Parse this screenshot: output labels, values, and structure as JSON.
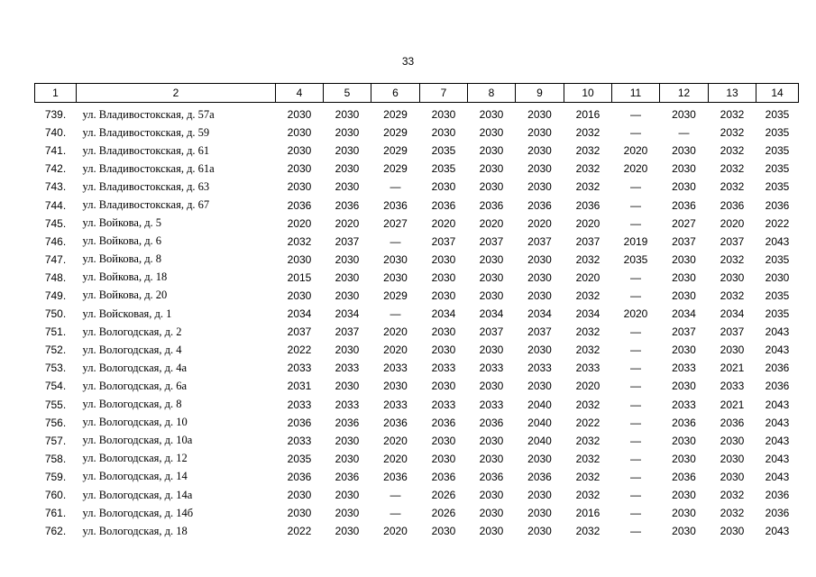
{
  "page_number": "33",
  "table": {
    "header": [
      "1",
      "2",
      "4",
      "5",
      "6",
      "7",
      "8",
      "9",
      "10",
      "11",
      "12",
      "13",
      "14"
    ],
    "rows": [
      [
        "739.",
        "ул. Владивостокская, д. 57а",
        "2030",
        "2030",
        "2029",
        "2030",
        "2030",
        "2030",
        "2016",
        "—",
        "2030",
        "2032",
        "2035"
      ],
      [
        "740.",
        "ул. Владивостокская, д. 59",
        "2030",
        "2030",
        "2029",
        "2030",
        "2030",
        "2030",
        "2032",
        "—",
        "—",
        "2032",
        "2035"
      ],
      [
        "741.",
        "ул. Владивостокская, д. 61",
        "2030",
        "2030",
        "2029",
        "2035",
        "2030",
        "2030",
        "2032",
        "2020",
        "2030",
        "2032",
        "2035"
      ],
      [
        "742.",
        "ул. Владивостокская, д. 61а",
        "2030",
        "2030",
        "2029",
        "2035",
        "2030",
        "2030",
        "2032",
        "2020",
        "2030",
        "2032",
        "2035"
      ],
      [
        "743.",
        "ул. Владивостокская, д. 63",
        "2030",
        "2030",
        "—",
        "2030",
        "2030",
        "2030",
        "2032",
        "—",
        "2030",
        "2032",
        "2035"
      ],
      [
        "744.",
        "ул. Владивостокская, д. 67",
        "2036",
        "2036",
        "2036",
        "2036",
        "2036",
        "2036",
        "2036",
        "—",
        "2036",
        "2036",
        "2036"
      ],
      [
        "745.",
        "ул. Войкова, д. 5",
        "2020",
        "2020",
        "2027",
        "2020",
        "2020",
        "2020",
        "2020",
        "—",
        "2027",
        "2020",
        "2022"
      ],
      [
        "746.",
        "ул. Войкова, д. 6",
        "2032",
        "2037",
        "—",
        "2037",
        "2037",
        "2037",
        "2037",
        "2019",
        "2037",
        "2037",
        "2043"
      ],
      [
        "747.",
        "ул. Войкова, д. 8",
        "2030",
        "2030",
        "2030",
        "2030",
        "2030",
        "2030",
        "2032",
        "2035",
        "2030",
        "2032",
        "2035"
      ],
      [
        "748.",
        "ул. Войкова, д. 18",
        "2015",
        "2030",
        "2030",
        "2030",
        "2030",
        "2030",
        "2020",
        "—",
        "2030",
        "2030",
        "2030"
      ],
      [
        "749.",
        "ул. Войкова, д. 20",
        "2030",
        "2030",
        "2029",
        "2030",
        "2030",
        "2030",
        "2032",
        "—",
        "2030",
        "2032",
        "2035"
      ],
      [
        "750.",
        "ул. Войсковая, д. 1",
        "2034",
        "2034",
        "—",
        "2034",
        "2034",
        "2034",
        "2034",
        "2020",
        "2034",
        "2034",
        "2035"
      ],
      [
        "751.",
        "ул. Вологодская, д. 2",
        "2037",
        "2037",
        "2020",
        "2030",
        "2037",
        "2037",
        "2032",
        "—",
        "2037",
        "2037",
        "2043"
      ],
      [
        "752.",
        "ул. Вологодская, д. 4",
        "2022",
        "2030",
        "2020",
        "2030",
        "2030",
        "2030",
        "2032",
        "—",
        "2030",
        "2030",
        "2043"
      ],
      [
        "753.",
        "ул. Вологодская, д. 4а",
        "2033",
        "2033",
        "2033",
        "2033",
        "2033",
        "2033",
        "2033",
        "—",
        "2033",
        "2021",
        "2036"
      ],
      [
        "754.",
        "ул. Вологодская, д. 6а",
        "2031",
        "2030",
        "2030",
        "2030",
        "2030",
        "2030",
        "2020",
        "—",
        "2030",
        "2033",
        "2036"
      ],
      [
        "755.",
        "ул. Вологодская, д. 8",
        "2033",
        "2033",
        "2033",
        "2033",
        "2033",
        "2040",
        "2032",
        "—",
        "2033",
        "2021",
        "2043"
      ],
      [
        "756.",
        "ул. Вологодская, д. 10",
        "2036",
        "2036",
        "2036",
        "2036",
        "2036",
        "2040",
        "2022",
        "—",
        "2036",
        "2036",
        "2043"
      ],
      [
        "757.",
        "ул. Вологодская, д. 10а",
        "2033",
        "2030",
        "2020",
        "2030",
        "2030",
        "2040",
        "2032",
        "—",
        "2030",
        "2030",
        "2043"
      ],
      [
        "758.",
        "ул. Вологодская, д. 12",
        "2035",
        "2030",
        "2020",
        "2030",
        "2030",
        "2030",
        "2032",
        "—",
        "2030",
        "2030",
        "2043"
      ],
      [
        "759.",
        "ул. Вологодская, д. 14",
        "2036",
        "2036",
        "2036",
        "2036",
        "2036",
        "2036",
        "2032",
        "—",
        "2036",
        "2030",
        "2043"
      ],
      [
        "760.",
        "ул. Вологодская, д. 14а",
        "2030",
        "2030",
        "—",
        "2026",
        "2030",
        "2030",
        "2032",
        "—",
        "2030",
        "2032",
        "2036"
      ],
      [
        "761.",
        "ул. Вологодская, д. 14б",
        "2030",
        "2030",
        "—",
        "2026",
        "2030",
        "2030",
        "2016",
        "—",
        "2030",
        "2032",
        "2036"
      ],
      [
        "762.",
        "ул. Вологодская, д. 18",
        "2022",
        "2030",
        "2020",
        "2030",
        "2030",
        "2030",
        "2032",
        "—",
        "2030",
        "2030",
        "2043"
      ]
    ]
  }
}
